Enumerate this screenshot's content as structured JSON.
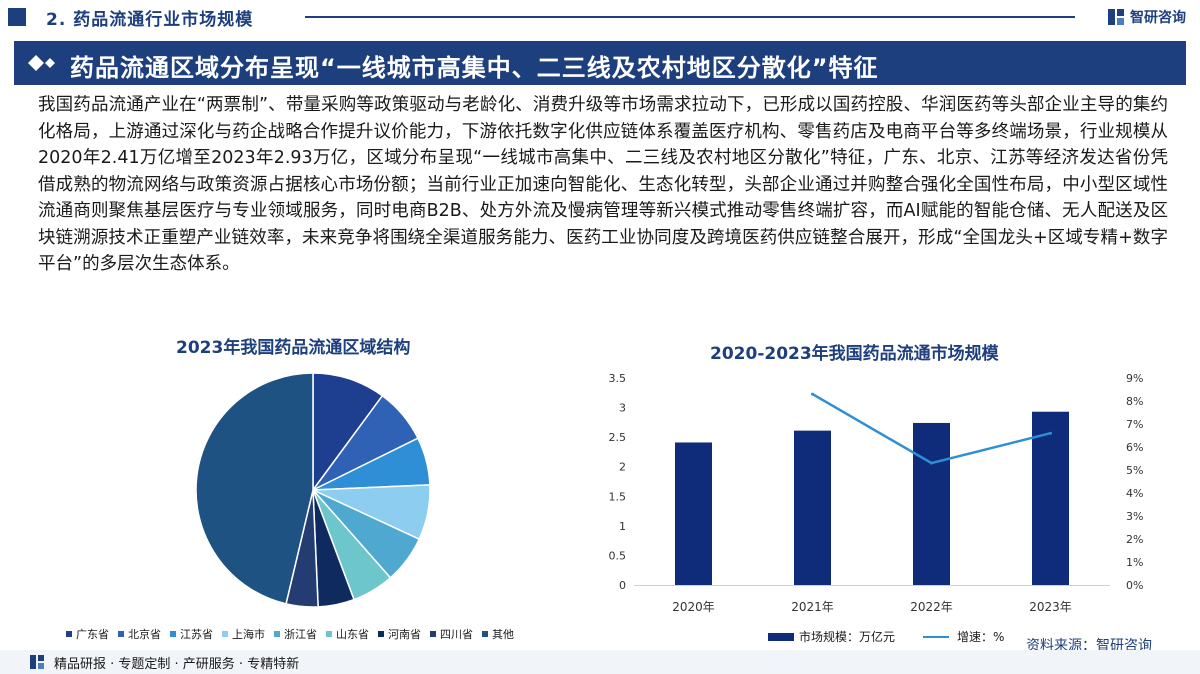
{
  "header": {
    "section_title": "2. 药品流通行业市场规模",
    "brand_name": "智研咨询"
  },
  "banner": {
    "title": "药品流通区域分布呈现“一线城市高集中、二三线及农村地区分散化”特征"
  },
  "body": {
    "paragraph": "我国药品流通产业在“两票制”、带量采购等政策驱动与老龄化、消费升级等市场需求拉动下，已形成以国药控股、华润医药等头部企业主导的集约化格局，上游通过深化与药企战略合作提升议价能力，下游依托数字化供应链体系覆盖医疗机构、零售药店及电商平台等多终端场景，行业规模从2020年2.41万亿增至2023年2.93万亿，区域分布呈现“一线城市高集中、二三线及农村地区分散化”特征，广东、北京、江苏等经济发达省份凭借成熟的物流网络与政策资源占据核心市场份额；当前行业正加速向智能化、生态化转型，头部企业通过并购整合强化全国性布局，中小型区域性流通商则聚焦基层医疗与专业领域服务，同时电商B2B、处方外流及慢病管理等新兴模式推动零售终端扩容，而AI赋能的智能仓储、无人配送及区块链溯源技术正重塑产业链效率，未来竞争将围绕全渠道服务能力、医药工业协同度及跨境医药供应链整合展开，形成“全国龙头+区域专精+数字平台”的多层次生态体系。"
  },
  "chart_data": [
    {
      "type": "pie",
      "title": "2023年我国药品流通区域结构",
      "categories": [
        "广东省",
        "北京省",
        "江苏省",
        "上海市",
        "浙江省",
        "山东省",
        "河南省",
        "四川省",
        "其他"
      ],
      "values": [
        10.1,
        7.6,
        6.6,
        7.6,
        6.6,
        5.8,
        5.0,
        4.4,
        46.3
      ],
      "colors": [
        "#1e3f8f",
        "#2f62b5",
        "#2e8fd6",
        "#8ccdf0",
        "#4fa8d0",
        "#6cc6cc",
        "#0f2a5e",
        "#233d72",
        "#1e5283"
      ],
      "legend_position": "bottom"
    },
    {
      "type": "bar",
      "title": "2020-2023年我国药品流通市场规模",
      "categories": [
        "2020年",
        "2021年",
        "2022年",
        "2023年"
      ],
      "series": [
        {
          "name": "市场规模：万亿元",
          "type": "bar",
          "axis": "left",
          "values": [
            2.41,
            2.61,
            2.74,
            2.93
          ],
          "color": "#0e2c7a"
        },
        {
          "name": "增速：%",
          "type": "line",
          "axis": "right",
          "values": [
            null,
            8.3,
            5.3,
            6.6
          ],
          "color": "#2e8fd6"
        }
      ],
      "y_left": {
        "min": 0,
        "max": 3.5,
        "ticks": [
          "0",
          "0.5",
          "1",
          "1.5",
          "2",
          "2.5",
          "3",
          "3.5"
        ]
      },
      "y_right": {
        "min": 0,
        "max": 9,
        "ticks": [
          "0%",
          "1%",
          "2%",
          "3%",
          "4%",
          "5%",
          "6%",
          "7%",
          "8%",
          "9%"
        ]
      },
      "grid": false,
      "legend_position": "bottom"
    }
  ],
  "source": "资料来源：智研咨询",
  "footer": {
    "text": "精品研报 · 专题定制 · 产研服务 · 专精特新"
  }
}
